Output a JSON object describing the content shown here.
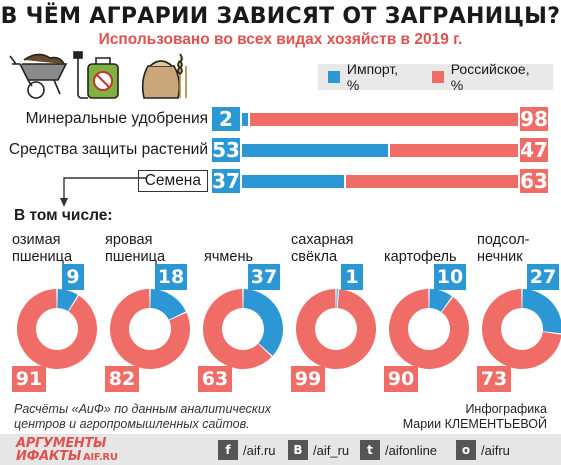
{
  "title": "В ЧЁМ АГРАРИИ ЗАВИСЯТ ОТ ЗАГРАНИЦЫ?",
  "subtitle": "Использовано во всех видах хозяйств в 2019 г.",
  "colors": {
    "import": "#2b97d5",
    "russian": "#ef6d66",
    "text": "#1a1a1a",
    "footer_bg": "#e6e6e6"
  },
  "legend": {
    "import": "Импорт, %",
    "russian": "Российское, %"
  },
  "sub_heading": "В том числе:",
  "chart_data": [
    {
      "type": "bar",
      "stacked": true,
      "orientation": "horizontal",
      "categories": [
        "Минеральные удобрения",
        "Средства защиты растений",
        "Семена"
      ],
      "series": [
        {
          "name": "Импорт, %",
          "values": [
            2,
            53,
            37
          ]
        },
        {
          "name": "Российское, %",
          "values": [
            98,
            47,
            63
          ]
        }
      ],
      "xlim": [
        0,
        100
      ]
    },
    {
      "type": "pie",
      "donut": true,
      "categories": [
        "озимая пшеница",
        "яровая пшеница",
        "ячмень",
        "сахарная свёкла",
        "картофель",
        "подсол-нечник"
      ],
      "labels": [
        [
          "озимая",
          "пшеница"
        ],
        [
          "яровая",
          "пшеница"
        ],
        [
          "ячмень"
        ],
        [
          "сахарная",
          "свёкла"
        ],
        [
          "картофель"
        ],
        [
          "подсол-",
          "нечник"
        ]
      ],
      "series": [
        {
          "name": "Импорт, %",
          "values": [
            9,
            18,
            37,
            1,
            10,
            27
          ]
        },
        {
          "name": "Российское, %",
          "values": [
            91,
            82,
            63,
            99,
            90,
            73
          ]
        }
      ]
    }
  ],
  "note": [
    "Расчёты «АиФ» по данным аналитических",
    "центров и агропромышленных сайтов."
  ],
  "credit": [
    "Инфографика",
    "Марии КЛЕМЕНТЬЕВОЙ"
  ],
  "footer": {
    "logo_top": "АРГУМЕНТЫ",
    "logo_bottom": "ИФАКТЫ",
    "logo_url": "AIF.RU",
    "social": [
      {
        "icon": "facebook-icon",
        "glyph": "f",
        "text": "/aif.ru"
      },
      {
        "icon": "vk-icon",
        "glyph": "B",
        "text": "/aif_ru"
      },
      {
        "icon": "twitter-icon",
        "glyph": "t",
        "text": "/aifonline"
      },
      {
        "icon": "odnoklassniki-icon",
        "glyph": "o",
        "text": "/aifru"
      }
    ]
  }
}
